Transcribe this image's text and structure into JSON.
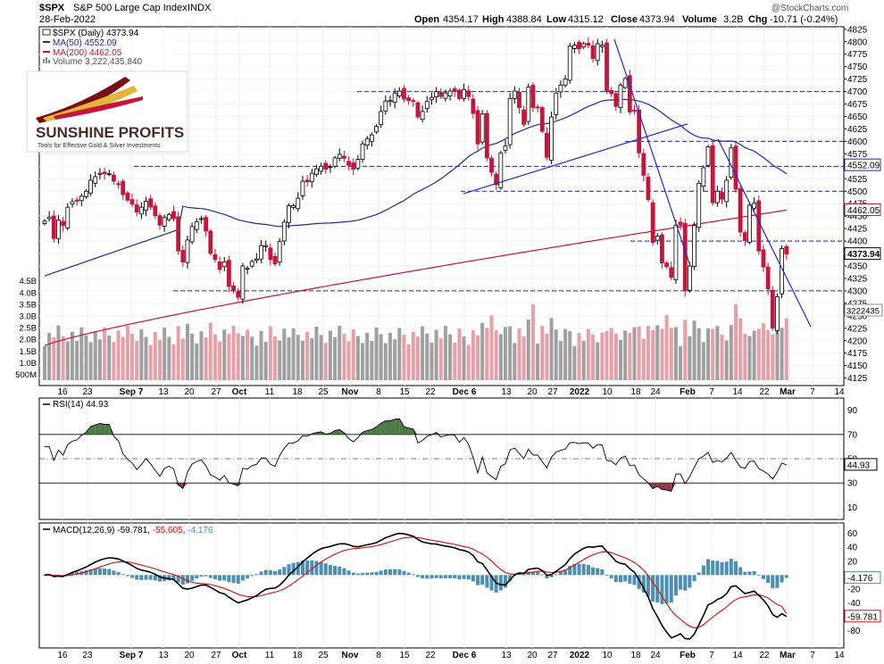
{
  "header": {
    "symbol": "$SPX",
    "name": "S&P 500 Large Cap Index",
    "exchange": "INDX",
    "date": "28-Feb-2022",
    "open_label": "Open",
    "open": "4354.17",
    "high_label": "High",
    "high": "4388.84",
    "low_label": "Low",
    "low": "4315.12",
    "close_label": "Close",
    "close": "4373.94",
    "volume_label": "Volume",
    "volume": "3.2B",
    "chg_label": "Chg",
    "chg": "-10.71 (-0.24%)",
    "watermark": "@StockCharts.com"
  },
  "legend": {
    "price": "$SPX (Daily) 4373.94",
    "ma50": "MA(50) 4552.09",
    "ma200": "MA(200) 4462.05",
    "volume": "Volume 3,222,435,840"
  },
  "logo": {
    "name": "SUNSHINE PROFITS",
    "tagline": "Tools for Effective Gold & Silver Investments"
  },
  "colors": {
    "up": "#ffffff",
    "down": "#c8143a",
    "ma50": "#1e2c9c",
    "ma200": "#c8143a",
    "vol_up": "#a0a0a0",
    "vol_down": "#e8a0a8",
    "macd": "#000000",
    "signal": "#d01010",
    "hist": "#4d8fb3",
    "rsi_over": "#4b7a46",
    "rsi_under": "#8b3a48",
    "dash": "#1e2c9c",
    "trend": "#2626d0"
  },
  "chart_data": [
    {
      "type": "candlestick",
      "title": "$SPX S&P 500 Large Cap Index INDX",
      "ylim": [
        4110,
        4830
      ],
      "y_ticks": [
        4125,
        4150,
        4175,
        4200,
        4225,
        4250,
        4275,
        4300,
        4325,
        4350,
        4375,
        4400,
        4425,
        4450,
        4475,
        4500,
        4525,
        4550,
        4575,
        4600,
        4625,
        4650,
        4675,
        4700,
        4725,
        4750,
        4775,
        4800,
        4825
      ],
      "x_ticks": [
        "16",
        "23",
        "Sep 7",
        "13",
        "20",
        "27",
        "Oct",
        "11",
        "18",
        "25",
        "Nov",
        "8",
        "15",
        "22",
        "Dec 6",
        "13",
        "20",
        "27",
        "2022",
        "10",
        "18",
        "24",
        "Feb",
        "7",
        "14",
        "22",
        "Mar",
        "7",
        "14"
      ],
      "y_flags": [
        {
          "label": "4552.09",
          "value": 4552.09
        },
        {
          "label": "4462.05",
          "value": 4462.05
        },
        {
          "label": "4373.94",
          "value": 4373.94
        }
      ],
      "horizontal_levels": [
        4700,
        4600,
        4550,
        4500,
        4400,
        4300
      ],
      "close": [
        4440,
        4448,
        4405,
        4442,
        4431,
        4468,
        4479,
        4480,
        4490,
        4500,
        4522,
        4529,
        4536,
        4535,
        4535,
        4520,
        4514,
        4493,
        4482,
        4474,
        4458,
        4468,
        4480,
        4468,
        4451,
        4432,
        4448,
        4453,
        4445,
        4380,
        4358,
        4402,
        4429,
        4439,
        4445,
        4420,
        4375,
        4363,
        4343,
        4358,
        4309,
        4300,
        4287,
        4350,
        4345,
        4359,
        4364,
        4391,
        4391,
        4363,
        4354,
        4399,
        4438,
        4471,
        4471,
        4486,
        4520,
        4519,
        4536,
        4545,
        4550,
        4544,
        4549,
        4567,
        4574,
        4566,
        4552,
        4544,
        4564,
        4595,
        4605,
        4613,
        4630,
        4660,
        4681,
        4682,
        4697,
        4701,
        4685,
        4682,
        4680,
        4649,
        4660,
        4680,
        4688,
        4700,
        4690,
        4697,
        4701,
        4700,
        4686,
        4704,
        4690,
        4656,
        4595,
        4655,
        4567,
        4538,
        4513,
        4577,
        4591,
        4686,
        4701,
        4668,
        4634,
        4709,
        4668,
        4669,
        4620,
        4568,
        4649,
        4697,
        4713,
        4725,
        4791,
        4793,
        4786,
        4796,
        4793,
        4766,
        4796,
        4793,
        4700,
        4696,
        4670,
        4713,
        4726,
        4659,
        4662,
        4577,
        4532,
        4483,
        4397,
        4410,
        4356,
        4349,
        4327,
        4432,
        4432,
        4300,
        4350,
        4431,
        4516,
        4547,
        4589,
        4477,
        4500,
        4484,
        4522,
        4587,
        4504,
        4418,
        4401,
        4472,
        4476,
        4380,
        4348,
        4304,
        4225,
        4288,
        4385,
        4374
      ],
      "volume_axis_labels": [
        "500M",
        "1.0B",
        "1.5B",
        "2.0B",
        "2.5B",
        "3.0B",
        "3.5B",
        "4.0B",
        "4.5B"
      ],
      "volume_last": 3222435840
    },
    {
      "type": "line",
      "title": "RSI(14) 44.93",
      "ylim": [
        0,
        100
      ],
      "y_ticks": [
        10,
        30,
        50,
        70,
        90
      ],
      "flag": "44.93",
      "values_start": 60,
      "values_end": 44.93
    },
    {
      "type": "line",
      "title": "MACD(12,26,9) -59.781, -55.605, -4.176",
      "macd": -59.781,
      "signal": -55.605,
      "histogram": -4.176,
      "ylim": [
        -105,
        75
      ],
      "y_ticks": [
        60,
        40,
        20,
        0,
        -20,
        -40,
        -60,
        -80
      ],
      "flags": [
        "-4.176",
        "-59.781"
      ]
    }
  ]
}
